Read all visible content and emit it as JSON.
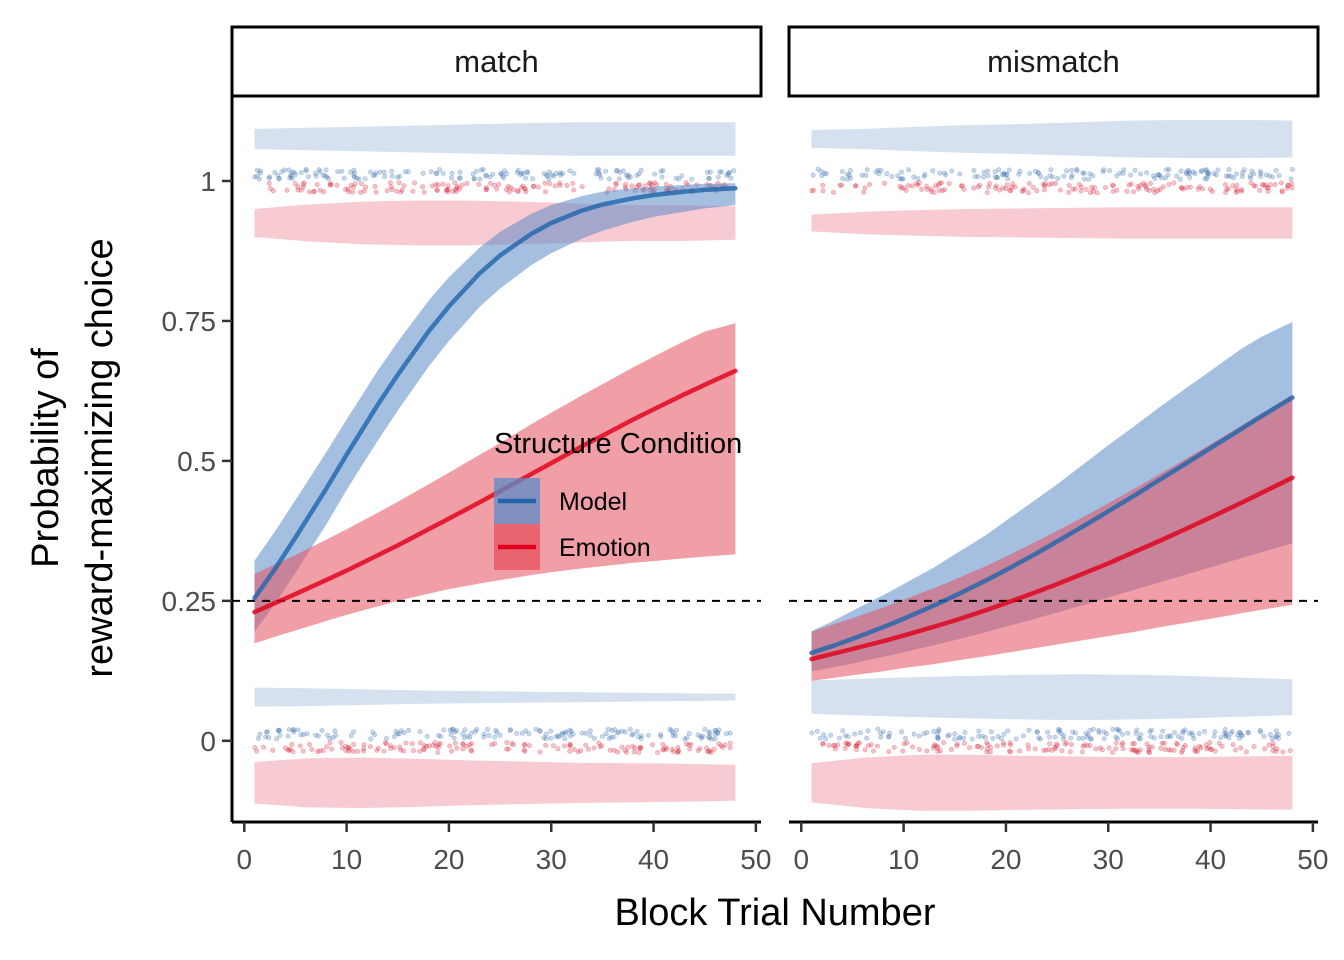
{
  "chart_data": {
    "type": "line",
    "xlabel": "Block Trial Number",
    "ylabel_lines": [
      "Probability of",
      "reward-maximizing choice"
    ],
    "xlim": [
      -1.2,
      50.5
    ],
    "ylim": [
      -0.145,
      1.15
    ],
    "x_ticks": [
      0,
      10,
      20,
      30,
      40,
      50
    ],
    "y_ticks": [
      0,
      0.25,
      0.5,
      0.75,
      1
    ],
    "y_tick_labels": [
      "0",
      "0.25",
      "0.5",
      "0.75",
      "1"
    ],
    "reference_line": 0.25,
    "x": [
      1,
      3,
      5,
      8,
      10,
      13,
      15,
      18,
      20,
      23,
      25,
      28,
      30,
      33,
      35,
      38,
      40,
      43,
      45,
      48
    ],
    "legend": {
      "title": "Structure Condition",
      "placement": "inside-left-panel",
      "entries": [
        {
          "name": "Model",
          "color": "#2166ac",
          "fill": "#5b8bc6"
        },
        {
          "name": "Emotion",
          "color": "#e0001a",
          "fill": "#e6505e"
        }
      ]
    },
    "panels": [
      {
        "label": "match",
        "series": [
          {
            "name": "Model",
            "values": [
              0.255,
              0.307,
              0.363,
              0.45,
              0.511,
              0.599,
              0.654,
              0.731,
              0.776,
              0.835,
              0.867,
              0.905,
              0.925,
              0.947,
              0.958,
              0.969,
              0.975,
              0.981,
              0.984,
              0.987
            ],
            "lower": [
              0.195,
              0.245,
              0.3,
              0.386,
              0.448,
              0.535,
              0.59,
              0.668,
              0.714,
              0.775,
              0.808,
              0.849,
              0.871,
              0.897,
              0.911,
              0.927,
              0.936,
              0.945,
              0.951,
              0.957
            ],
            "upper": [
              0.322,
              0.374,
              0.43,
              0.515,
              0.574,
              0.66,
              0.713,
              0.786,
              0.828,
              0.881,
              0.909,
              0.941,
              0.957,
              0.973,
              0.981,
              0.987,
              0.99,
              0.993,
              0.995,
              0.996
            ]
          },
          {
            "name": "Emotion",
            "values": [
              0.23,
              0.246,
              0.262,
              0.287,
              0.304,
              0.331,
              0.349,
              0.378,
              0.397,
              0.426,
              0.446,
              0.476,
              0.496,
              0.526,
              0.545,
              0.574,
              0.592,
              0.619,
              0.636,
              0.661
            ],
            "lower": [
              0.174,
              0.186,
              0.197,
              0.214,
              0.225,
              0.24,
              0.25,
              0.263,
              0.271,
              0.281,
              0.287,
              0.296,
              0.301,
              0.308,
              0.312,
              0.318,
              0.321,
              0.326,
              0.329,
              0.333
            ],
            "upper": [
              0.298,
              0.315,
              0.332,
              0.359,
              0.378,
              0.407,
              0.427,
              0.458,
              0.479,
              0.511,
              0.532,
              0.565,
              0.586,
              0.617,
              0.637,
              0.667,
              0.686,
              0.714,
              0.731,
              0.746
            ]
          }
        ],
        "raw_rows": [
          {
            "series": "Model",
            "y": 1.012
          },
          {
            "series": "Emotion",
            "y": 0.988
          },
          {
            "series": "Model",
            "y": 0.012
          },
          {
            "series": "Emotion",
            "y": -0.012
          }
        ],
        "density_bands": [
          {
            "series": "Model",
            "center": 1.075,
            "half_width": [
              0.018,
              0.02,
              0.022,
              0.024,
              0.026,
              0.028,
              0.03,
              0.03,
              0.03,
              0.03
            ]
          },
          {
            "series": "Emotion",
            "center": 0.925,
            "half_width": [
              0.025,
              0.033,
              0.038,
              0.04,
              0.04,
              0.038,
              0.035,
              0.032,
              0.032,
              0.03
            ]
          },
          {
            "series": "Model",
            "center": 0.078,
            "half_width": [
              0.017,
              0.016,
              0.014,
              0.012,
              0.011,
              0.01,
              0.009,
              0.008,
              0.007,
              0.006
            ]
          },
          {
            "series": "Emotion",
            "center": -0.075,
            "half_width": [
              0.037,
              0.044,
              0.045,
              0.043,
              0.04,
              0.038,
              0.036,
              0.035,
              0.034,
              0.032
            ]
          }
        ]
      },
      {
        "label": "mismatch",
        "series": [
          {
            "name": "Model",
            "values": [
              0.157,
              0.169,
              0.182,
              0.203,
              0.218,
              0.242,
              0.259,
              0.286,
              0.305,
              0.335,
              0.356,
              0.388,
              0.41,
              0.443,
              0.466,
              0.5,
              0.523,
              0.557,
              0.58,
              0.613
            ],
            "lower": [
              0.124,
              0.131,
              0.138,
              0.15,
              0.158,
              0.171,
              0.18,
              0.194,
              0.204,
              0.219,
              0.229,
              0.245,
              0.256,
              0.272,
              0.283,
              0.299,
              0.31,
              0.326,
              0.337,
              0.353
            ],
            "upper": [
              0.196,
              0.213,
              0.232,
              0.26,
              0.28,
              0.31,
              0.333,
              0.367,
              0.393,
              0.432,
              0.458,
              0.5,
              0.528,
              0.568,
              0.596,
              0.635,
              0.661,
              0.7,
              0.722,
              0.748
            ]
          },
          {
            "name": "Emotion",
            "values": [
              0.146,
              0.155,
              0.164,
              0.178,
              0.188,
              0.204,
              0.215,
              0.233,
              0.246,
              0.266,
              0.28,
              0.302,
              0.317,
              0.341,
              0.357,
              0.382,
              0.399,
              0.425,
              0.443,
              0.47
            ],
            "lower": [
              0.107,
              0.112,
              0.117,
              0.124,
              0.13,
              0.137,
              0.143,
              0.151,
              0.157,
              0.166,
              0.172,
              0.181,
              0.187,
              0.196,
              0.203,
              0.212,
              0.218,
              0.228,
              0.234,
              0.243
            ],
            "upper": [
              0.195,
              0.207,
              0.219,
              0.238,
              0.252,
              0.273,
              0.288,
              0.312,
              0.329,
              0.356,
              0.375,
              0.404,
              0.424,
              0.455,
              0.476,
              0.508,
              0.53,
              0.563,
              0.585,
              0.618
            ]
          }
        ],
        "raw_rows": [
          {
            "series": "Model",
            "y": 1.012
          },
          {
            "series": "Emotion",
            "y": 0.988
          },
          {
            "series": "Model",
            "y": 0.012
          },
          {
            "series": "Emotion",
            "y": -0.012
          }
        ],
        "density_bands": [
          {
            "series": "Model",
            "center": 1.075,
            "half_width": [
              0.016,
              0.018,
              0.022,
              0.025,
              0.027,
              0.03,
              0.033,
              0.034,
              0.034,
              0.033
            ]
          },
          {
            "series": "Emotion",
            "center": 0.925,
            "half_width": [
              0.015,
              0.02,
              0.023,
              0.025,
              0.026,
              0.027,
              0.028,
              0.028,
              0.028,
              0.028
            ]
          },
          {
            "series": "Model",
            "center": 0.078,
            "half_width": [
              0.03,
              0.033,
              0.036,
              0.038,
              0.04,
              0.041,
              0.04,
              0.038,
              0.035,
              0.032
            ]
          },
          {
            "series": "Emotion",
            "center": -0.075,
            "half_width": [
              0.035,
              0.045,
              0.05,
              0.05,
              0.048,
              0.047,
              0.046,
              0.046,
              0.047,
              0.048
            ]
          }
        ]
      }
    ]
  }
}
